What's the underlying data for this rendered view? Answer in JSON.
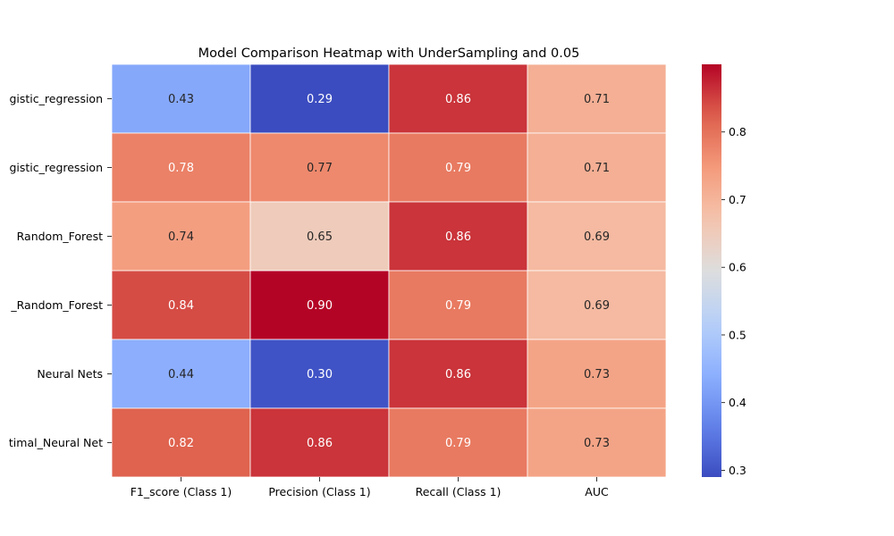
{
  "chart_data": {
    "type": "heatmap",
    "title": "Model Comparison Heatmap with UnderSampling and 0.05",
    "xlabel": "",
    "ylabel": "",
    "rows": [
      "gistic_regression",
      "gistic_regression",
      "Random_Forest",
      "_Random_Forest",
      "Neural Nets",
      "timal_Neural Net"
    ],
    "columns": [
      "F1_score (Class 1)",
      "Precision (Class 1)",
      "Recall (Class 1)",
      "AUC"
    ],
    "values": [
      [
        0.43,
        0.29,
        0.86,
        0.71
      ],
      [
        0.78,
        0.77,
        0.79,
        0.71
      ],
      [
        0.74,
        0.65,
        0.86,
        0.69
      ],
      [
        0.84,
        0.9,
        0.79,
        0.69
      ],
      [
        0.44,
        0.3,
        0.86,
        0.73
      ],
      [
        0.82,
        0.86,
        0.79,
        0.73
      ]
    ],
    "cell_labels": [
      [
        "0.43",
        "0.29",
        "0.86",
        "0.71"
      ],
      [
        "0.78",
        "0.77",
        "0.79",
        "0.71"
      ],
      [
        "0.74",
        "0.65",
        "0.86",
        "0.69"
      ],
      [
        "0.84",
        "0.90",
        "0.79",
        "0.69"
      ],
      [
        "0.44",
        "0.30",
        "0.86",
        "0.73"
      ],
      [
        "0.82",
        "0.86",
        "0.79",
        "0.73"
      ]
    ],
    "colormap": "coolwarm",
    "vmin": 0.29,
    "vmax": 0.9,
    "colorbar": {
      "ticks": [
        0.3,
        0.4,
        0.5,
        0.6,
        0.7,
        0.8
      ],
      "tick_labels": [
        "0.3",
        "0.4",
        "0.5",
        "0.6",
        "0.7",
        "0.8"
      ]
    },
    "grid": false,
    "legend": "colorbar-right"
  }
}
